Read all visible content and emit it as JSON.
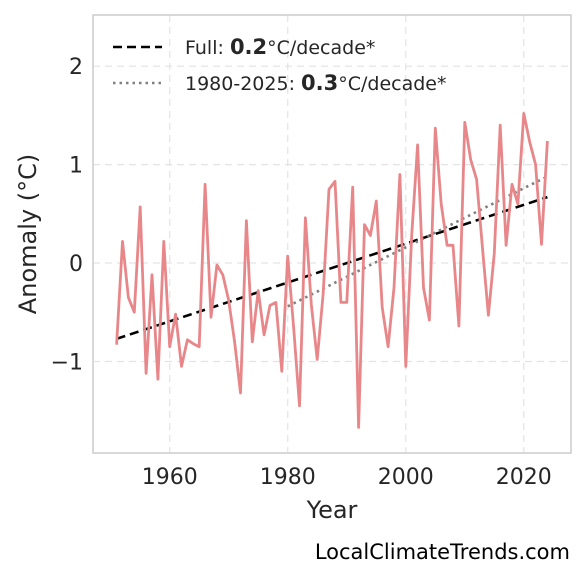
{
  "chart_data": {
    "type": "line",
    "xlabel": "Year",
    "ylabel": "Anomaly (°C)",
    "xlim": [
      1947,
      2028
    ],
    "ylim": [
      -1.93,
      2.52
    ],
    "xticks": [
      1960,
      1980,
      2000,
      2020
    ],
    "yticks": [
      -1,
      0,
      1,
      2
    ],
    "ytick_labels": [
      "−1",
      "0",
      "1",
      "2"
    ],
    "grid": true,
    "legend_position": "top-left",
    "series": [
      {
        "line_color": "#e8878a",
        "x": [
          1951,
          1952,
          1953,
          1954,
          1955,
          1956,
          1957,
          1958,
          1959,
          1960,
          1961,
          1962,
          1963,
          1964,
          1965,
          1966,
          1967,
          1968,
          1969,
          1970,
          1971,
          1972,
          1973,
          1974,
          1975,
          1976,
          1977,
          1978,
          1979,
          1980,
          1981,
          1982,
          1983,
          1984,
          1985,
          1986,
          1987,
          1988,
          1989,
          1990,
          1991,
          1992,
          1993,
          1994,
          1995,
          1996,
          1997,
          1998,
          1999,
          2000,
          2001,
          2002,
          2003,
          2004,
          2005,
          2006,
          2007,
          2008,
          2009,
          2010,
          2011,
          2012,
          2013,
          2014,
          2015,
          2016,
          2017,
          2018,
          2019,
          2020,
          2021,
          2022,
          2023,
          2024
        ],
        "y": [
          -0.83,
          0.22,
          -0.35,
          -0.5,
          0.57,
          -1.12,
          -0.12,
          -1.18,
          0.22,
          -0.85,
          -0.52,
          -1.05,
          -0.78,
          -0.82,
          -0.85,
          0.8,
          -0.55,
          -0.02,
          -0.12,
          -0.38,
          -0.8,
          -1.32,
          0.43,
          -0.8,
          -0.28,
          -0.73,
          -0.43,
          -0.4,
          -1.1,
          0.07,
          -0.65,
          -1.45,
          0.46,
          -0.42,
          -0.98,
          -0.32,
          0.75,
          0.83,
          -0.4,
          -0.4,
          0.77,
          -1.67,
          0.39,
          0.28,
          0.63,
          -0.45,
          -0.85,
          -0.25,
          0.9,
          -1.05,
          0.28,
          1.2,
          -0.25,
          -0.58,
          1.37,
          0.6,
          0.18,
          0.18,
          -0.64,
          1.43,
          1.05,
          0.85,
          0.15,
          -0.53,
          0.1,
          1.4,
          0.18,
          0.8,
          0.6,
          1.52,
          1.23,
          1.0,
          0.19,
          1.24
        ]
      }
    ],
    "trend_lines": [
      {
        "style": "dashed",
        "line_color": "#000000",
        "x": [
          1951,
          2024
        ],
        "y": [
          -0.77,
          0.67
        ],
        "label_prefix": "Full: ",
        "label_value": "0.2",
        "label_suffix": "°C/decade*"
      },
      {
        "style": "dotted",
        "line_color": "#808080",
        "x": [
          1980,
          2024
        ],
        "y": [
          -0.44,
          0.88
        ],
        "label_prefix": "1980-2025: ",
        "label_value": "0.3",
        "label_suffix": "°C/decade*"
      }
    ],
    "credit": "LocalClimateTrends.com"
  }
}
